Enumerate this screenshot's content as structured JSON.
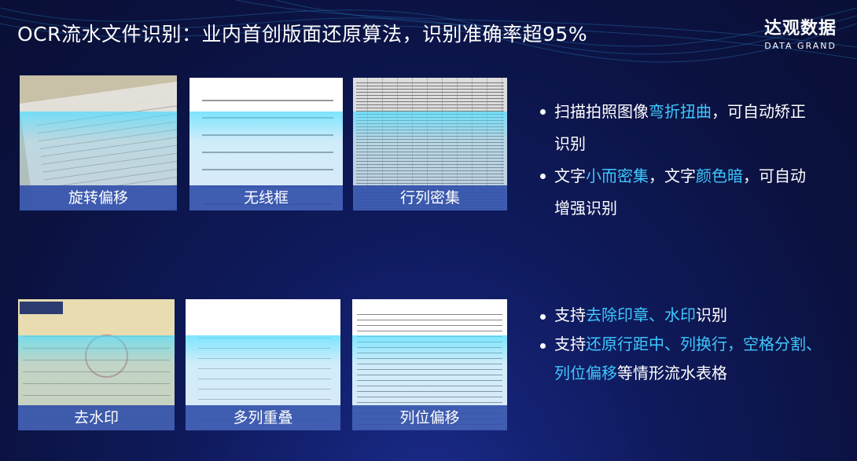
{
  "title": "OCR流水文件识别：业内首创版面还原算法，识别准确率超95%",
  "logo": {
    "cn": "达观数据",
    "en": "DATA GRAND"
  },
  "top_cards": [
    {
      "caption": "旋转偏移"
    },
    {
      "caption": "无线框"
    },
    {
      "caption": "行列密集"
    }
  ],
  "bottom_cards": [
    {
      "caption": "去水印"
    },
    {
      "caption": "多列重叠"
    },
    {
      "caption": "列位偏移"
    }
  ],
  "top_bullets": [
    [
      {
        "t": "扫描拍照图像"
      },
      {
        "t": "弯折扭曲",
        "hl": true
      },
      {
        "t": "，可自动矫正识别"
      }
    ],
    [
      {
        "t": "文字"
      },
      {
        "t": "小而密集",
        "hl": true
      },
      {
        "t": "，文字"
      },
      {
        "t": "颜色暗",
        "hl": true
      },
      {
        "t": "，可自动增强识别"
      }
    ]
  ],
  "bottom_bullets": [
    [
      {
        "t": "支持"
      },
      {
        "t": "去除印章、水印",
        "hl": true
      },
      {
        "t": "识别"
      }
    ],
    [
      {
        "t": "支持"
      },
      {
        "t": "还原行距中、列换行，空格分割、列位偏移",
        "hl": true
      },
      {
        "t": "等情形流水表格"
      }
    ]
  ],
  "colors": {
    "highlight": "#3ec8ff",
    "caption_bar": "#3250aa",
    "background": "#0b1240"
  }
}
